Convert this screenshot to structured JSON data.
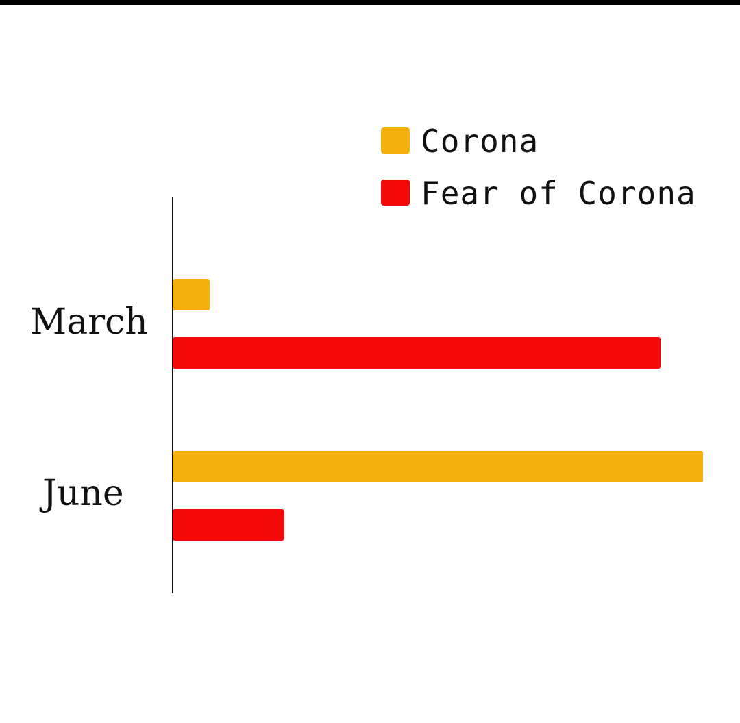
{
  "chart_data": {
    "type": "bar",
    "orientation": "horizontal",
    "categories": [
      "March",
      "June"
    ],
    "series": [
      {
        "name": "Corona",
        "color": "#F4B00E",
        "values": [
          7,
          100
        ]
      },
      {
        "name": "Fear of Corona",
        "color": "#F50A0A",
        "values": [
          92,
          21
        ]
      }
    ],
    "title": "",
    "xlabel": "",
    "ylabel": "",
    "xlim": [
      0,
      100
    ],
    "grid": false,
    "legend_position": "top-right",
    "axis_ticks": false
  }
}
